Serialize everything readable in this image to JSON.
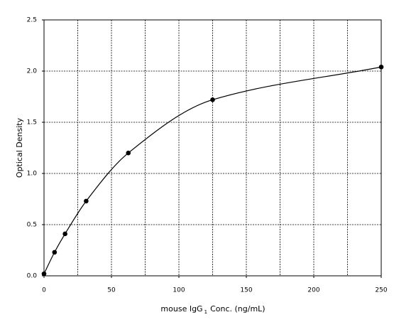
{
  "chart_data": {
    "type": "scatter",
    "x_label": {
      "text": "mouse IgG",
      "subscript": "1",
      "rest": "Conc. (ng/mL)"
    },
    "y_label": "Optical Density",
    "x": [
      0,
      7.8,
      15.6,
      31.25,
      62.5,
      125,
      250
    ],
    "values": [
      0.02,
      0.23,
      0.41,
      0.73,
      1.2,
      1.72,
      2.04
    ],
    "color": "#000000",
    "fit_curve": true,
    "xlim": [
      0,
      250
    ],
    "xticks": [
      0,
      50,
      100,
      150,
      200,
      250
    ],
    "xminorticks": [
      25,
      75,
      125,
      175,
      225
    ],
    "ylim": [
      0,
      2.5
    ],
    "yticks": [
      {
        "value": 0,
        "label": "0.0"
      },
      {
        "value": 0.5,
        "label": "0.5"
      },
      {
        "value": 1,
        "label": "1.0"
      },
      {
        "value": 1.5,
        "label": "1.5"
      },
      {
        "value": 2,
        "label": "2.0"
      },
      {
        "value": 2.5,
        "label": "2.5"
      }
    ],
    "grid": true
  }
}
